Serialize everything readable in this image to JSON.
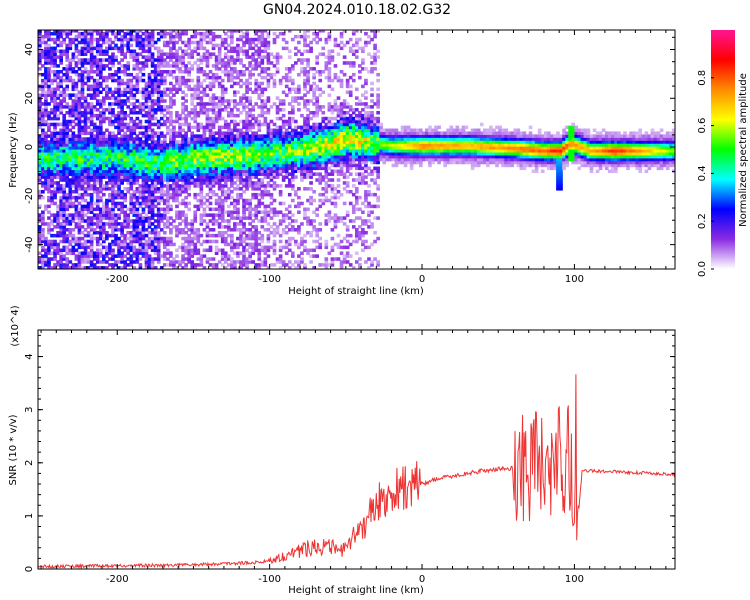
{
  "title": "GN04.2024.010.18.02.G32",
  "chart_data": [
    {
      "type": "heatmap",
      "xlabel": "Height of straight line (km)",
      "ylabel": "Frequency (Hz)",
      "xlim": [
        -252,
        166
      ],
      "ylim": [
        -50,
        48
      ],
      "xticks": [
        -200,
        -100,
        0,
        100
      ],
      "yticks": [
        -40,
        -20,
        0,
        20,
        40
      ],
      "colorbar": {
        "label": "Normalized spectral amplitude",
        "range": [
          0,
          1
        ],
        "ticks": [
          "0.0",
          "0.2",
          "0.4",
          "0.6",
          "0.8"
        ],
        "colors": [
          "#ffffff",
          "#8a2be2",
          "#0000ff",
          "#00ffff",
          "#00ff00",
          "#ffff00",
          "#ff8c00",
          "#ff0000",
          "#ff1493"
        ]
      },
      "ridge": [
        {
          "x": -200,
          "y": -5,
          "amp": 0.45
        },
        {
          "x": -170,
          "y": -7,
          "amp": 0.5
        },
        {
          "x": -150,
          "y": -5,
          "amp": 0.55
        },
        {
          "x": -120,
          "y": -4,
          "amp": 0.55
        },
        {
          "x": -100,
          "y": -3,
          "amp": 0.5
        },
        {
          "x": -80,
          "y": -2,
          "amp": 0.55
        },
        {
          "x": -60,
          "y": 1,
          "amp": 0.6
        },
        {
          "x": -50,
          "y": 3,
          "amp": 0.65
        },
        {
          "x": -40,
          "y": 2,
          "amp": 0.6
        },
        {
          "x": -30,
          "y": 1,
          "amp": 0.55
        },
        {
          "x": -20,
          "y": 0,
          "amp": 0.6
        },
        {
          "x": 0,
          "y": 0,
          "amp": 0.75
        },
        {
          "x": 30,
          "y": 0,
          "amp": 0.7
        },
        {
          "x": 60,
          "y": -1,
          "amp": 0.75
        },
        {
          "x": 80,
          "y": -2,
          "amp": 0.8
        },
        {
          "x": 90,
          "y": -2,
          "amp": 0.85
        },
        {
          "x": 97,
          "y": 1,
          "amp": 0.75
        },
        {
          "x": 110,
          "y": -2,
          "amp": 0.7
        },
        {
          "x": 125,
          "y": -2,
          "amp": 0.85
        },
        {
          "x": 166,
          "y": -2,
          "amp": 0.55
        }
      ]
    },
    {
      "type": "line",
      "xlabel": "Height of straight line (km)",
      "ylabel": "SNR (10 * v/v)",
      "y_multiplier": "(x10^4)",
      "xlim": [
        -252,
        166
      ],
      "ylim": [
        0,
        4.5
      ],
      "xticks": [
        -200,
        -100,
        0,
        100
      ],
      "yticks": [
        0,
        1,
        2,
        3,
        4
      ],
      "series": [
        {
          "color": "#ee3333",
          "x": [
            -252,
            -200,
            -150,
            -120,
            -105,
            -100,
            -90,
            -80,
            -70,
            -60,
            -50,
            -40,
            -35,
            -30,
            -25,
            -20,
            -15,
            -10,
            0,
            10,
            20,
            30,
            40,
            50,
            60,
            70,
            80,
            85,
            88,
            92,
            95,
            98,
            100,
            102,
            105,
            110,
            130,
            150,
            166
          ],
          "y": [
            0.02,
            0.03,
            0.05,
            0.08,
            0.1,
            0.15,
            0.25,
            0.35,
            0.45,
            0.4,
            0.35,
            0.8,
            1.0,
            1.2,
            1.35,
            1.45,
            1.5,
            1.55,
            1.6,
            1.7,
            1.75,
            1.8,
            1.85,
            1.88,
            1.9,
            1.9,
            1.92,
            1.95,
            2.0,
            2.05,
            2.1,
            2.0,
            1.6,
            0.8,
            1.85,
            1.85,
            1.83,
            1.8,
            1.78
          ]
        }
      ]
    }
  ]
}
